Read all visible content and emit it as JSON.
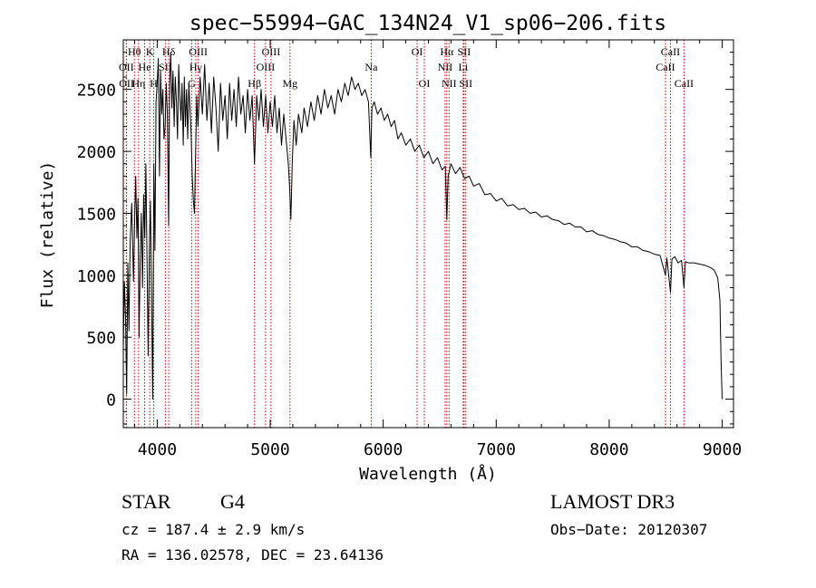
{
  "chart_data": {
    "type": "line",
    "title": "spec−55994−GAC_134N24_V1_sp06−206.fits",
    "xlabel": "Wavelength (Å)",
    "ylabel": "Flux (relative)",
    "xlim": [
      3700,
      9100
    ],
    "ylim": [
      -230,
      2900
    ],
    "xticks": [
      4000,
      5000,
      6000,
      7000,
      8000,
      9000
    ],
    "yticks": [
      0,
      500,
      1000,
      1500,
      2000,
      2500
    ],
    "xtick_labels": [
      "4000",
      "5000",
      "6000",
      "7000",
      "8000",
      "9000"
    ],
    "ytick_labels": [
      "0",
      "500",
      "1000",
      "1500",
      "2000",
      "2500"
    ],
    "x_minor_step": 200,
    "y_minor_step": 100,
    "grid": false,
    "series": [
      {
        "name": "flux",
        "points": [
          [
            3700,
            400
          ],
          [
            3710,
            950
          ],
          [
            3720,
            650
          ],
          [
            3730,
            40
          ],
          [
            3740,
            1100
          ],
          [
            3750,
            550
          ],
          [
            3760,
            1250
          ],
          [
            3775,
            1580
          ],
          [
            3790,
            950
          ],
          [
            3800,
            1450
          ],
          [
            3810,
            1800
          ],
          [
            3820,
            1300
          ],
          [
            3830,
            1620
          ],
          [
            3840,
            500
          ],
          [
            3850,
            1150
          ],
          [
            3860,
            1500
          ],
          [
            3870,
            900
          ],
          [
            3880,
            1650
          ],
          [
            3890,
            1300
          ],
          [
            3900,
            1900
          ],
          [
            3910,
            1100
          ],
          [
            3920,
            350
          ],
          [
            3930,
            1200
          ],
          [
            3940,
            1600
          ],
          [
            3950,
            800
          ],
          [
            3960,
            0
          ],
          [
            3970,
            1900
          ],
          [
            3980,
            1200
          ],
          [
            3990,
            2400
          ],
          [
            4000,
            2550
          ],
          [
            4010,
            2750
          ],
          [
            4020,
            1800
          ],
          [
            4030,
            2650
          ],
          [
            4040,
            2300
          ],
          [
            4050,
            2500
          ],
          [
            4060,
            2100
          ],
          [
            4070,
            2200
          ],
          [
            4080,
            2550
          ],
          [
            4090,
            2300
          ],
          [
            4101,
            1400
          ],
          [
            4110,
            2550
          ],
          [
            4120,
            2800
          ],
          [
            4130,
            2350
          ],
          [
            4140,
            2650
          ],
          [
            4150,
            2200
          ],
          [
            4160,
            2600
          ],
          [
            4170,
            2400
          ],
          [
            4180,
            2100
          ],
          [
            4190,
            2700
          ],
          [
            4200,
            2450
          ],
          [
            4210,
            2250
          ],
          [
            4220,
            2550
          ],
          [
            4230,
            2050
          ],
          [
            4240,
            2600
          ],
          [
            4250,
            2200
          ],
          [
            4260,
            2500
          ],
          [
            4270,
            2100
          ],
          [
            4280,
            2550
          ],
          [
            4290,
            2350
          ],
          [
            4300,
            2150
          ],
          [
            4310,
            1800
          ],
          [
            4320,
            1600
          ],
          [
            4330,
            1500
          ],
          [
            4340,
            2000
          ],
          [
            4350,
            2450
          ],
          [
            4360,
            2200
          ],
          [
            4380,
            2600
          ],
          [
            4400,
            2300
          ],
          [
            4420,
            2700
          ],
          [
            4440,
            2250
          ],
          [
            4460,
            2550
          ],
          [
            4480,
            2150
          ],
          [
            4500,
            2600
          ],
          [
            4520,
            2350
          ],
          [
            4540,
            2000
          ],
          [
            4560,
            2550
          ],
          [
            4580,
            2250
          ],
          [
            4600,
            2450
          ],
          [
            4620,
            2100
          ],
          [
            4640,
            2550
          ],
          [
            4660,
            2250
          ],
          [
            4680,
            2500
          ],
          [
            4700,
            2200
          ],
          [
            4720,
            2600
          ],
          [
            4740,
            2300
          ],
          [
            4760,
            2450
          ],
          [
            4780,
            2150
          ],
          [
            4800,
            2500
          ],
          [
            4820,
            2250
          ],
          [
            4840,
            2450
          ],
          [
            4861,
            1900
          ],
          [
            4880,
            2450
          ],
          [
            4900,
            2250
          ],
          [
            4920,
            2500
          ],
          [
            4940,
            2200
          ],
          [
            4960,
            2450
          ],
          [
            4980,
            2150
          ],
          [
            5000,
            2400
          ],
          [
            5020,
            2200
          ],
          [
            5040,
            2450
          ],
          [
            5060,
            2150
          ],
          [
            5080,
            2350
          ],
          [
            5100,
            2050
          ],
          [
            5120,
            2300
          ],
          [
            5140,
            2100
          ],
          [
            5160,
            1900
          ],
          [
            5172,
            1700
          ],
          [
            5183,
            1450
          ],
          [
            5195,
            1900
          ],
          [
            5210,
            2250
          ],
          [
            5230,
            2050
          ],
          [
            5250,
            2300
          ],
          [
            5280,
            2150
          ],
          [
            5300,
            2350
          ],
          [
            5330,
            2200
          ],
          [
            5360,
            2400
          ],
          [
            5390,
            2250
          ],
          [
            5420,
            2450
          ],
          [
            5450,
            2300
          ],
          [
            5480,
            2500
          ],
          [
            5510,
            2350
          ],
          [
            5540,
            2450
          ],
          [
            5570,
            2300
          ],
          [
            5600,
            2500
          ],
          [
            5630,
            2400
          ],
          [
            5660,
            2550
          ],
          [
            5690,
            2450
          ],
          [
            5720,
            2600
          ],
          [
            5750,
            2500
          ],
          [
            5780,
            2550
          ],
          [
            5810,
            2450
          ],
          [
            5840,
            2500
          ],
          [
            5870,
            2400
          ],
          [
            5890,
            1950
          ],
          [
            5900,
            2350
          ],
          [
            5920,
            2400
          ],
          [
            5950,
            2300
          ],
          [
            5980,
            2350
          ],
          [
            6010,
            2250
          ],
          [
            6040,
            2300
          ],
          [
            6070,
            2200
          ],
          [
            6100,
            2250
          ],
          [
            6130,
            2100
          ],
          [
            6160,
            2150
          ],
          [
            6200,
            2050
          ],
          [
            6240,
            2100
          ],
          [
            6280,
            2000
          ],
          [
            6320,
            2050
          ],
          [
            6360,
            1950
          ],
          [
            6400,
            2000
          ],
          [
            6440,
            1900
          ],
          [
            6480,
            1950
          ],
          [
            6520,
            1850
          ],
          [
            6550,
            1880
          ],
          [
            6563,
            1450
          ],
          [
            6575,
            1800
          ],
          [
            6600,
            1900
          ],
          [
            6640,
            1820
          ],
          [
            6680,
            1870
          ],
          [
            6720,
            1780
          ],
          [
            6760,
            1800
          ],
          [
            6800,
            1720
          ],
          [
            6850,
            1740
          ],
          [
            6900,
            1650
          ],
          [
            6950,
            1660
          ],
          [
            7000,
            1600
          ],
          [
            7050,
            1620
          ],
          [
            7100,
            1560
          ],
          [
            7150,
            1570
          ],
          [
            7200,
            1530
          ],
          [
            7250,
            1540
          ],
          [
            7300,
            1500
          ],
          [
            7350,
            1510
          ],
          [
            7400,
            1470
          ],
          [
            7450,
            1480
          ],
          [
            7500,
            1450
          ],
          [
            7550,
            1440
          ],
          [
            7600,
            1410
          ],
          [
            7650,
            1420
          ],
          [
            7700,
            1390
          ],
          [
            7750,
            1390
          ],
          [
            7800,
            1350
          ],
          [
            7850,
            1360
          ],
          [
            7900,
            1330
          ],
          [
            7950,
            1320
          ],
          [
            8000,
            1300
          ],
          [
            8050,
            1290
          ],
          [
            8100,
            1270
          ],
          [
            8150,
            1260
          ],
          [
            8200,
            1230
          ],
          [
            8250,
            1230
          ],
          [
            8300,
            1200
          ],
          [
            8350,
            1190
          ],
          [
            8400,
            1170
          ],
          [
            8450,
            1160
          ],
          [
            8498,
            1000
          ],
          [
            8510,
            1140
          ],
          [
            8542,
            860
          ],
          [
            8555,
            1130
          ],
          [
            8580,
            1150
          ],
          [
            8610,
            1100
          ],
          [
            8640,
            1120
          ],
          [
            8662,
            900
          ],
          [
            8675,
            1110
          ],
          [
            8700,
            1100
          ],
          [
            8750,
            1100
          ],
          [
            8800,
            1090
          ],
          [
            8850,
            1080
          ],
          [
            8900,
            1060
          ],
          [
            8930,
            1040
          ],
          [
            8960,
            980
          ],
          [
            8980,
            800
          ],
          [
            8990,
            300
          ],
          [
            9000,
            0
          ]
        ]
      }
    ],
    "line_markers": [
      {
        "label": "Hθ",
        "wavelength": 3798,
        "row": 0
      },
      {
        "label": "OII",
        "wavelength": 3727,
        "row": 1
      },
      {
        "label": "OII",
        "wavelength": 3729,
        "row": 2
      },
      {
        "label": "Hη",
        "wavelength": 3835,
        "row": 2
      },
      {
        "label": "He",
        "wavelength": 3889,
        "row": 1
      },
      {
        "label": "K",
        "wavelength": 3934,
        "row": 0
      },
      {
        "label": "H",
        "wavelength": 3969,
        "row": 2
      },
      {
        "label": "SII",
        "wavelength": 4072,
        "row": 1
      },
      {
        "label": "Hδ",
        "wavelength": 4102,
        "row": 0
      },
      {
        "label": "Hγ",
        "wavelength": 4341,
        "row": 1
      },
      {
        "label": "G",
        "wavelength": 4305,
        "row": 2
      },
      {
        "label": "OIII",
        "wavelength": 4363,
        "row": 0
      },
      {
        "label": "Hβ",
        "wavelength": 4861,
        "row": 2
      },
      {
        "label": "OIII",
        "wavelength": 4959,
        "row": 1
      },
      {
        "label": "OIII",
        "wavelength": 5007,
        "row": 0
      },
      {
        "label": "Mg",
        "wavelength": 5175,
        "row": 2
      },
      {
        "label": "Na",
        "wavelength": 5894,
        "row": 1
      },
      {
        "label": "OI",
        "wavelength": 6300,
        "row": 0
      },
      {
        "label": "OI",
        "wavelength": 6364,
        "row": 2
      },
      {
        "label": "NII",
        "wavelength": 6548,
        "row": 1
      },
      {
        "label": "Hα",
        "wavelength": 6563,
        "row": 0
      },
      {
        "label": "NII",
        "wavelength": 6583,
        "row": 2
      },
      {
        "label": "Li",
        "wavelength": 6708,
        "row": 1
      },
      {
        "label": "SII",
        "wavelength": 6716,
        "row": 0
      },
      {
        "label": "SII",
        "wavelength": 6731,
        "row": 2
      },
      {
        "label": "CaII",
        "wavelength": 8498,
        "row": 1
      },
      {
        "label": "CaII",
        "wavelength": 8542,
        "row": 0
      },
      {
        "label": "CaII",
        "wavelength": 8662,
        "row": 2
      }
    ],
    "colors": {
      "axes": "#000000",
      "flux_line": "#000000",
      "marker_line": "#cc0000",
      "background": "#ffffff"
    }
  },
  "info": {
    "object_class": "STAR",
    "subclass": "G4",
    "survey": "LAMOST DR3",
    "redshift_text": "cz = 187.4 ± 2.9 km/s",
    "obs_date_text": "Obs−Date: 20120307",
    "coords_text": "RA = 136.02578, DEC =  23.64136"
  }
}
